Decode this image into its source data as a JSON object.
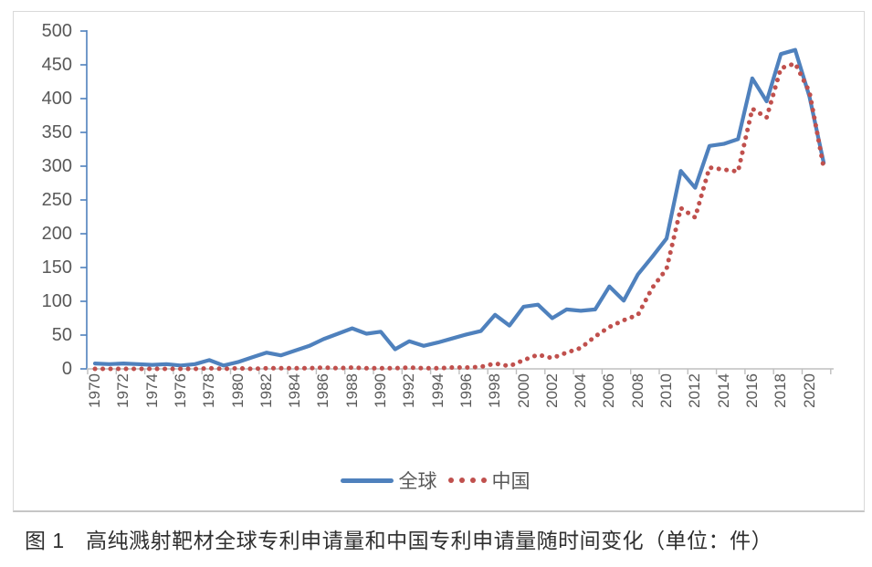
{
  "chart_data": {
    "type": "line",
    "title": "",
    "xlabel": "",
    "ylabel": "",
    "x": [
      1970,
      1971,
      1972,
      1973,
      1974,
      1975,
      1976,
      1977,
      1978,
      1979,
      1980,
      1981,
      1982,
      1983,
      1984,
      1985,
      1986,
      1987,
      1988,
      1989,
      1990,
      1991,
      1992,
      1993,
      1994,
      1995,
      1996,
      1997,
      1998,
      1999,
      2000,
      2001,
      2002,
      2003,
      2004,
      2005,
      2006,
      2007,
      2008,
      2009,
      2010,
      2011,
      2012,
      2013,
      2014,
      2015,
      2016,
      2017,
      2018,
      2019,
      2020,
      2021
    ],
    "series": [
      {
        "name": "全球",
        "style": "solid",
        "color": "#4f81bd",
        "values": [
          8,
          7,
          8,
          7,
          6,
          7,
          5,
          7,
          13,
          5,
          10,
          17,
          24,
          20,
          27,
          34,
          44,
          52,
          60,
          52,
          55,
          29,
          41,
          34,
          39,
          45,
          51,
          56,
          80,
          64,
          92,
          95,
          75,
          88,
          86,
          88,
          122,
          101,
          140,
          166,
          193,
          293,
          268,
          330,
          333,
          340,
          430,
          396,
          466,
          472,
          403,
          305
        ]
      },
      {
        "name": "中国",
        "style": "dotted",
        "color": "#c0504d",
        "values": [
          0,
          0,
          0,
          0,
          0,
          0,
          0,
          0,
          1,
          0,
          1,
          0,
          1,
          1,
          1,
          1,
          2,
          1,
          2,
          1,
          1,
          1,
          2,
          1,
          1,
          2,
          2,
          3,
          8,
          4,
          13,
          21,
          16,
          24,
          31,
          48,
          62,
          72,
          80,
          120,
          148,
          238,
          224,
          298,
          295,
          292,
          385,
          372,
          445,
          452,
          410,
          298
        ]
      }
    ],
    "ylim": [
      0,
      500
    ],
    "yticks": [
      0,
      50,
      100,
      150,
      200,
      250,
      300,
      350,
      400,
      450,
      500
    ],
    "xtick_labels": [
      "1970",
      "1972",
      "1974",
      "1976",
      "1978",
      "1980",
      "1982",
      "1984",
      "1986",
      "1988",
      "1990",
      "1992",
      "1994",
      "1996",
      "1998",
      "2000",
      "2002",
      "2004",
      "2006",
      "2008",
      "2010",
      "2012",
      "2014",
      "2016",
      "2018",
      "2020"
    ],
    "grid": false,
    "legend_position": "bottom"
  },
  "legend": {
    "global_label": "全球",
    "china_label": "中国"
  },
  "caption": {
    "text": "图 1　高纯溅射靶材全球专利申请量和中国专利申请量随时间变化（单位：件）"
  },
  "colors": {
    "global_line": "#4f81bd",
    "china_line": "#c0504d",
    "axis_blue": "#4f81bd",
    "axis_gray": "#bfbfbf",
    "tick_label": "#595959",
    "frame_border": "#d9d9d9",
    "caption_text": "#2f2f2f"
  }
}
